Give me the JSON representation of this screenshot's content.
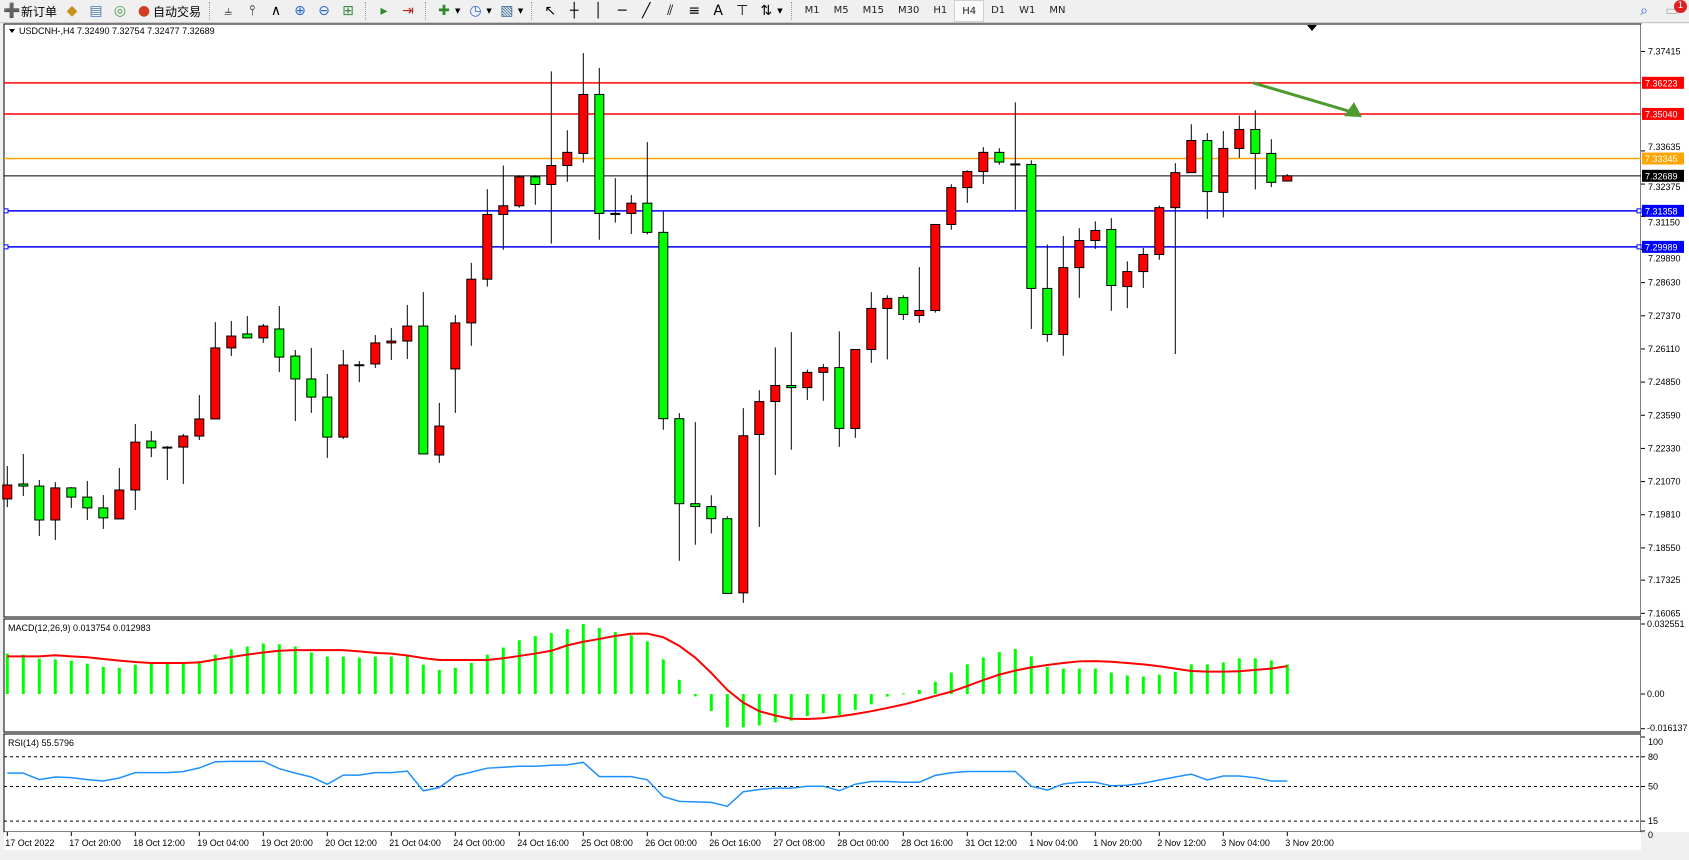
{
  "toolbar": {
    "new_order_label": "新订单",
    "auto_trading_label": "自动交易",
    "text_tool_label": "A",
    "timeframes": [
      "M1",
      "M5",
      "M15",
      "M30",
      "H1",
      "H4",
      "D1",
      "W1",
      "MN"
    ],
    "active_timeframe": "H4",
    "notification_count": "1"
  },
  "chart": {
    "header": "USDCNH-,H4  7.32490 7.32754 7.32477 7.32689",
    "macd_label": "MACD(12,26,9) 0.013754 0.012983",
    "rsi_label": "RSI(14) 55.5796",
    "price_ticks": [
      "7.37415",
      "7.33635",
      "7.32375",
      "7.31150",
      "7.29890",
      "7.28630",
      "7.27370",
      "7.26110",
      "7.24850",
      "7.23590",
      "7.22330",
      "7.21070",
      "7.19810",
      "7.18550",
      "7.17325",
      "7.16065"
    ],
    "macd_ticks": [
      "0.032551",
      "0.00",
      "-0.016137"
    ],
    "rsi_ticks": [
      "100",
      "80",
      "50",
      "15",
      "0"
    ],
    "time_labels": [
      "17 Oct 2022",
      "17 Oct 20:00",
      "18 Oct 12:00",
      "19 Oct 04:00",
      "19 Oct 20:00",
      "20 Oct 12:00",
      "21 Oct 04:00",
      "24 Oct 00:00",
      "24 Oct 16:00",
      "25 Oct 08:00",
      "26 Oct 00:00",
      "26 Oct 16:00",
      "27 Oct 08:00",
      "28 Oct 00:00",
      "28 Oct 16:00",
      "31 Oct 12:00",
      "1 Nov 04:00",
      "1 Nov 20:00",
      "2 Nov 12:00",
      "3 Nov 04:00",
      "3 Nov 20:00"
    ],
    "horizontal_lines": [
      {
        "price": "7.36223",
        "color": "#ff0000"
      },
      {
        "price": "7.35040",
        "color": "#ff0000"
      },
      {
        "price": "7.33345",
        "color": "#ffa500"
      },
      {
        "price": "7.32689",
        "color": "#000000"
      },
      {
        "price": "7.31358",
        "color": "#0000ff"
      },
      {
        "price": "7.29989",
        "color": "#0000ff"
      }
    ],
    "colors": {
      "bull": "#ff0000",
      "bear": "#00ff00",
      "macd_hist": "#00ff00",
      "macd_signal": "#ff0000",
      "rsi": "#1e90ff",
      "arrow": "#4f9a2f"
    }
  },
  "chart_data": {
    "type": "candlestick",
    "symbol": "USDCNH-",
    "timeframe": "H4",
    "ohlc": [
      [
        7.2041,
        7.2166,
        7.201,
        7.2094
      ],
      [
        7.2098,
        7.2212,
        7.2052,
        7.209
      ],
      [
        7.209,
        7.2113,
        7.19,
        7.1961
      ],
      [
        7.1961,
        7.2105,
        7.1885,
        7.2083
      ],
      [
        7.2083,
        7.2086,
        7.2007,
        7.2048
      ],
      [
        7.2048,
        7.2109,
        7.1961,
        7.2007
      ],
      [
        7.2007,
        7.2056,
        7.1927,
        7.1969
      ],
      [
        7.1965,
        7.2159,
        7.1965,
        7.2075
      ],
      [
        7.2075,
        7.2326,
        7.1999,
        7.2257
      ],
      [
        7.2261,
        7.2299,
        7.22,
        7.2235
      ],
      [
        7.2238,
        7.2242,
        7.2113,
        7.2235
      ],
      [
        7.2238,
        7.2288,
        7.2098,
        7.228
      ],
      [
        7.228,
        7.2436,
        7.2265,
        7.2345
      ],
      [
        7.2345,
        7.2713,
        7.2345,
        7.2615
      ],
      [
        7.2615,
        7.2717,
        7.2584,
        7.266
      ],
      [
        7.2668,
        7.2736,
        7.2653,
        7.2653
      ],
      [
        7.2653,
        7.2706,
        7.2634,
        7.2698
      ],
      [
        7.2687,
        7.2774,
        7.2523,
        7.258
      ],
      [
        7.2584,
        7.2607,
        7.2337,
        7.2497
      ],
      [
        7.2497,
        7.2615,
        7.2368,
        7.2428
      ],
      [
        7.2428,
        7.2516,
        7.2197,
        7.2276
      ],
      [
        7.2276,
        7.2607,
        7.2269,
        7.255
      ],
      [
        7.255,
        7.2565,
        7.2485,
        7.2551
      ],
      [
        7.2554,
        7.2664,
        7.2539,
        7.2634
      ],
      [
        7.2634,
        7.2691,
        7.2569,
        7.2641
      ],
      [
        7.2641,
        7.2778,
        7.2573,
        7.2698
      ],
      [
        7.2698,
        7.2827,
        7.2212,
        7.2212
      ],
      [
        7.2208,
        7.2406,
        7.2178,
        7.2318
      ],
      [
        7.2535,
        7.274,
        7.2368,
        7.271
      ],
      [
        7.271,
        7.2938,
        7.2623,
        7.2876
      ],
      [
        7.2876,
        7.3218,
        7.2848,
        7.3122
      ],
      [
        7.3122,
        7.3308,
        7.2988,
        7.3155
      ],
      [
        7.3155,
        7.3271,
        7.3148,
        7.3265
      ],
      [
        7.3265,
        7.3271,
        7.3159,
        7.3236
      ],
      [
        7.3236,
        7.3666,
        7.3011,
        7.3308
      ],
      [
        7.3308,
        7.3442,
        7.3246,
        7.3358
      ],
      [
        7.3354,
        7.3735,
        7.3319,
        7.3578
      ],
      [
        7.3578,
        7.3679,
        7.3026,
        7.3126
      ],
      [
        7.3126,
        7.326,
        7.3091,
        7.3126
      ],
      [
        7.3126,
        7.3196,
        7.3048,
        7.3165
      ],
      [
        7.3165,
        7.3397,
        7.3046,
        7.3054
      ],
      [
        7.3054,
        7.3133,
        7.2304,
        7.2346
      ],
      [
        7.2346,
        7.2367,
        7.1806,
        7.2023
      ],
      [
        7.2023,
        7.2333,
        7.1867,
        7.2012
      ],
      [
        7.2012,
        7.2055,
        7.191,
        7.1966
      ],
      [
        7.1966,
        7.1975,
        7.1682,
        7.1682
      ],
      [
        7.1684,
        7.2386,
        7.1646,
        7.2281
      ],
      [
        7.2286,
        7.2454,
        7.1935,
        7.2411
      ],
      [
        7.2411,
        7.2617,
        7.2132,
        7.2472
      ],
      [
        7.2472,
        7.2675,
        7.2228,
        7.2464
      ],
      [
        7.2464,
        7.2533,
        7.2417,
        7.2522
      ],
      [
        7.2522,
        7.2554,
        7.2414,
        7.254
      ],
      [
        7.254,
        7.2678,
        7.2239,
        7.2309
      ],
      [
        7.2309,
        7.2609,
        7.2273,
        7.2609
      ],
      [
        7.2609,
        7.2827,
        7.2558,
        7.2765
      ],
      [
        7.2765,
        7.2815,
        7.2571,
        7.2803
      ],
      [
        7.2806,
        7.2815,
        7.2721,
        7.2742
      ],
      [
        7.2738,
        7.2922,
        7.271,
        7.2757
      ],
      [
        7.2757,
        7.3084,
        7.2749,
        7.3084
      ],
      [
        7.3084,
        7.3237,
        7.3064,
        7.3224
      ],
      [
        7.3224,
        7.329,
        7.3166,
        7.3285
      ],
      [
        7.3285,
        7.3378,
        7.3238,
        7.3358
      ],
      [
        7.3358,
        7.3374,
        7.3311,
        7.3321
      ],
      [
        7.3314,
        7.3548,
        7.314,
        7.3314
      ],
      [
        7.3312,
        7.3328,
        7.2687,
        7.2841
      ],
      [
        7.2841,
        7.3008,
        7.2638,
        7.2666
      ],
      [
        7.2666,
        7.304,
        7.2585,
        7.292
      ],
      [
        7.292,
        7.307,
        7.2805,
        7.3023
      ],
      [
        7.3023,
        7.3096,
        7.2991,
        7.3061
      ],
      [
        7.3065,
        7.3108,
        7.2756,
        7.2852
      ],
      [
        7.2848,
        7.2944,
        7.2766,
        7.2905
      ],
      [
        7.2905,
        7.2995,
        7.2843,
        7.297
      ],
      [
        7.297,
        7.3156,
        7.295,
        7.3148
      ],
      [
        7.3148,
        7.3317,
        7.2592,
        7.3281
      ],
      [
        7.3281,
        7.3465,
        7.3281,
        7.3403
      ],
      [
        7.3403,
        7.3431,
        7.3105,
        7.3209
      ],
      [
        7.3206,
        7.3439,
        7.3111,
        7.3373
      ],
      [
        7.3373,
        7.3498,
        7.3337,
        7.3445
      ],
      [
        7.3445,
        7.3518,
        7.3217,
        7.3354
      ],
      [
        7.3354,
        7.3408,
        7.3226,
        7.3244
      ],
      [
        7.3249,
        7.32754,
        7.32477,
        7.32689
      ]
    ],
    "price_range": [
      7.16065,
      7.37415
    ],
    "macd_hist": [
      0.0188,
      0.0183,
      0.0164,
      0.0161,
      0.0155,
      0.0141,
      0.0126,
      0.0122,
      0.0136,
      0.0141,
      0.0145,
      0.0149,
      0.0153,
      0.0183,
      0.0207,
      0.0221,
      0.0235,
      0.0231,
      0.0221,
      0.0193,
      0.0174,
      0.0174,
      0.0169,
      0.0174,
      0.0174,
      0.0179,
      0.0136,
      0.0112,
      0.0122,
      0.0145,
      0.0183,
      0.0216,
      0.025,
      0.0269,
      0.0283,
      0.0302,
      0.0326,
      0.0307,
      0.0288,
      0.0273,
      0.0245,
      0.0161,
      0.0066,
      -0.0011,
      -0.0079,
      -0.0155,
      -0.0155,
      -0.0146,
      -0.0132,
      -0.0124,
      -0.0103,
      -0.009,
      -0.0098,
      -0.0074,
      -0.0048,
      -0.0012,
      0.0003,
      0.0019,
      0.0057,
      0.01,
      0.0138,
      0.017,
      0.0195,
      0.0209,
      0.0175,
      0.0126,
      0.0118,
      0.0118,
      0.0118,
      0.01,
      0.0086,
      0.0081,
      0.009,
      0.0103,
      0.0138,
      0.0138,
      0.0147,
      0.0166,
      0.0166,
      0.0156,
      0.013754
    ],
    "macd_signal": [
      0.0175,
      0.0175,
      0.0175,
      0.018,
      0.0175,
      0.0171,
      0.0163,
      0.0155,
      0.0149,
      0.0144,
      0.0144,
      0.0144,
      0.0147,
      0.016,
      0.0172,
      0.0183,
      0.0193,
      0.0201,
      0.0204,
      0.0204,
      0.0204,
      0.0204,
      0.0198,
      0.0191,
      0.0188,
      0.0179,
      0.0167,
      0.0158,
      0.0158,
      0.0158,
      0.0158,
      0.0166,
      0.0177,
      0.0188,
      0.0201,
      0.0226,
      0.0243,
      0.0256,
      0.027,
      0.028,
      0.0281,
      0.0264,
      0.0224,
      0.0169,
      0.0098,
      0.0019,
      -0.004,
      -0.008,
      -0.01,
      -0.0115,
      -0.0116,
      -0.0113,
      -0.0104,
      -0.0093,
      -0.008,
      -0.0065,
      -0.0049,
      -0.003,
      -0.0009,
      0.0011,
      0.0037,
      0.0065,
      0.009,
      0.0109,
      0.0124,
      0.0135,
      0.0144,
      0.0152,
      0.0153,
      0.015,
      0.0144,
      0.0138,
      0.0129,
      0.0118,
      0.0107,
      0.0104,
      0.0104,
      0.0106,
      0.0112,
      0.0118,
      0.012983
    ],
    "macd_range": [
      -0.016137,
      0.032551
    ],
    "rsi": [
      63.5,
      63.5,
      57,
      59.6,
      59,
      57,
      55.6,
      58.6,
      64,
      64,
      64,
      65,
      68.8,
      75,
      75.4,
      75.4,
      75.4,
      68,
      63.5,
      59.6,
      52.3,
      61.5,
      61.5,
      64,
      64,
      65.5,
      45.7,
      49,
      60.6,
      64.5,
      68.5,
      69.5,
      70.5,
      70.5,
      71.5,
      71.8,
      74.4,
      60,
      60,
      60,
      56.8,
      39.8,
      35,
      34.5,
      34,
      30,
      44.7,
      47,
      48.3,
      48.3,
      50.3,
      50.3,
      45.7,
      52.3,
      55,
      55,
      54.3,
      54.3,
      61.2,
      63.9,
      65.2,
      65.2,
      65.2,
      65.2,
      50.3,
      46.4,
      52.6,
      54.3,
      54.3,
      50.7,
      51.3,
      53.3,
      56.6,
      59.6,
      62.5,
      56.6,
      60.6,
      60.6,
      58.9,
      55.6,
      55.5796
    ],
    "rsi_levels": [
      80,
      50,
      15
    ],
    "rsi_range": [
      0,
      100
    ],
    "arrow": {
      "from_price": 7.36223,
      "to_price": 7.3492,
      "direction": "down-right"
    }
  }
}
